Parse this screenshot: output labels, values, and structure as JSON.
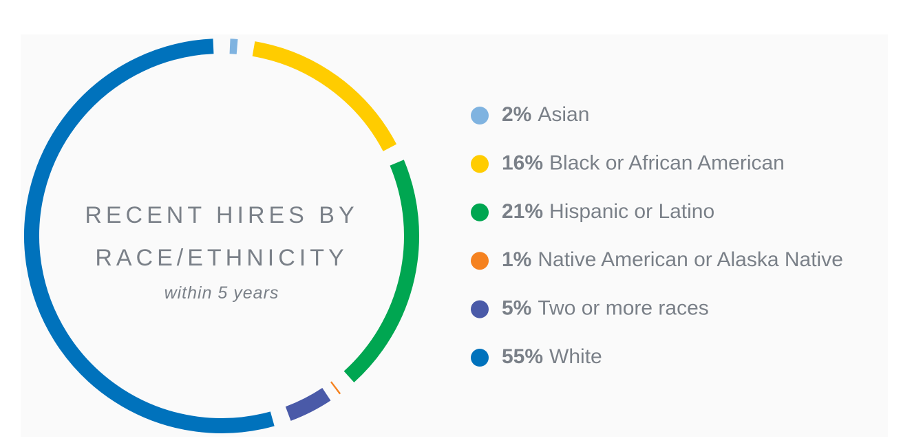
{
  "chart_data": {
    "type": "donut",
    "title": "RECENT HIRES BY RACE/ETHNICITY",
    "subtitle": "within 5 years",
    "categories": [
      "Asian",
      "Black or African American",
      "Hispanic or Latino",
      "Native American or Alaska Native",
      "Two or more races",
      "White"
    ],
    "values": [
      2,
      16,
      21,
      1,
      5,
      55
    ],
    "value_labels": [
      "2%",
      "16%",
      "21%",
      "1%",
      "5%",
      "55%"
    ],
    "colors": [
      "#7fb3e0",
      "#ffcc00",
      "#00a651",
      "#f58220",
      "#4a5aa8",
      "#0072bc"
    ],
    "legend": "right"
  }
}
